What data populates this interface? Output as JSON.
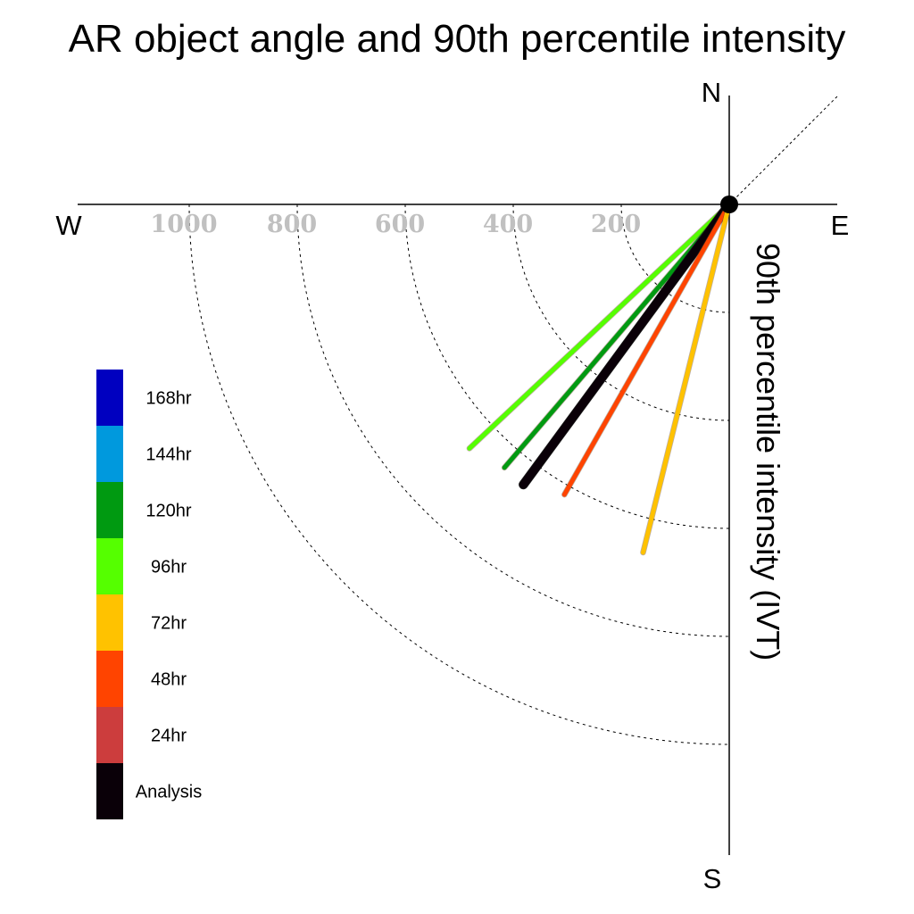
{
  "chart_data": {
    "type": "polar-radial",
    "title": "AR object angle and 90th percentile intensity",
    "ylabel": "90th percentile intensity (IVT)",
    "compass": {
      "north": "N",
      "south": "S",
      "east": "E",
      "west": "W"
    },
    "rlim": [
      0,
      1000
    ],
    "rticks": [
      200,
      400,
      600,
      800,
      1000
    ],
    "rtick_labels": [
      "200",
      "400",
      "600",
      "800",
      "1000"
    ],
    "grid": true,
    "legend_position": "left",
    "legend": [
      {
        "label": "168hr",
        "color": "#0000c0"
      },
      {
        "label": "144hr",
        "color": "#0099dd"
      },
      {
        "label": "120hr",
        "color": "#009a11"
      },
      {
        "label": "96hr",
        "color": "#55ff00"
      },
      {
        "label": "72hr",
        "color": "#ffc200"
      },
      {
        "label": "48hr",
        "color": "#ff4400"
      },
      {
        "label": "24hr",
        "color": "#cc3d3d"
      },
      {
        "label": "Analysis",
        "color": "#0a0008"
      }
    ],
    "series": [
      {
        "name": "96hr",
        "angle_deg": 226.8,
        "value": 660,
        "color": "#55ff00"
      },
      {
        "name": "120hr",
        "angle_deg": 220.5,
        "value": 641,
        "color": "#009a11"
      },
      {
        "name": "Analysis",
        "angle_deg": 216.3,
        "value": 644,
        "color": "#0a0008"
      },
      {
        "name": "48hr",
        "angle_deg": 209.6,
        "value": 618,
        "color": "#ff4400"
      },
      {
        "name": "72hr",
        "angle_deg": 193.9,
        "value": 664,
        "color": "#ffc200"
      }
    ]
  }
}
